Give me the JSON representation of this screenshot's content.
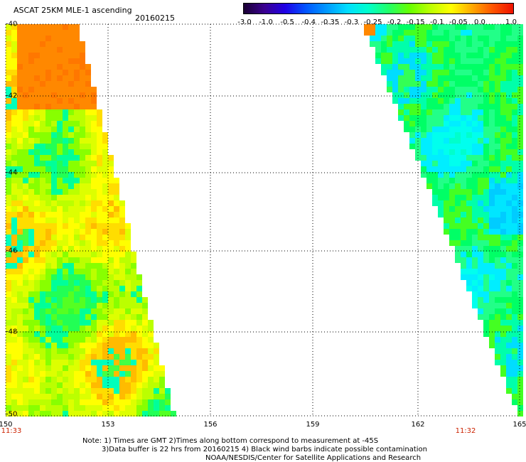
{
  "title": "ASCAT 25KM MLE-1 ascending",
  "date": "20160215",
  "colorbar": {
    "labels": [
      "-3.0",
      "-1.0",
      "-0.5",
      "-0.4",
      "-0.35",
      "-0.3",
      "-0.25",
      "-0.2",
      "-0.15",
      "-0.1",
      "-0.05",
      "0.0",
      "1.0"
    ],
    "colors": [
      "#1a0033",
      "#3a0090",
      "#1f00e6",
      "#0055ff",
      "#0099ff",
      "#00ddff",
      "#00ffcc",
      "#22ff66",
      "#66ff00",
      "#bbff00",
      "#ffff00",
      "#ffaa00",
      "#ff5500",
      "#ee1100"
    ]
  },
  "axes": {
    "lat_labels": [
      "-40",
      "-42",
      "-44",
      "-46",
      "-48",
      "-50"
    ],
    "lon_labels": [
      "150",
      "153",
      "156",
      "159",
      "162",
      "165"
    ],
    "time_left": "11:33",
    "time_right": "11:32"
  },
  "notes": {
    "line1": "Note: 1) Times are GMT 2)Times along bottom correspond to measurement at -45S",
    "line2": "3)Data buffer is 22 hrs from 20160215 4) Black wind barbs indicate possible contamination",
    "line3": "NOAA/NESDIS/Center for Satellite Applications and Research"
  },
  "map": {
    "field": "MLE-1",
    "lon_range": [
      150,
      165
    ],
    "lat_range": [
      -50,
      -40
    ],
    "left_swath": "mostly -0.25 to 0.0 with orange (0.0 to 1.0) in the north",
    "right_swath": "mostly -0.35 to -0.15"
  }
}
